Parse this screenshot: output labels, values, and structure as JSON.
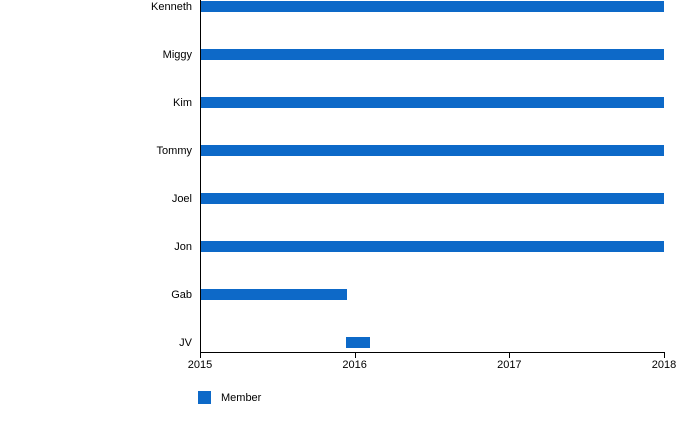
{
  "chart_data": {
    "type": "bar",
    "subtype": "horizontal-range-timeline",
    "title": "",
    "xlabel": "",
    "ylabel": "",
    "grid": false,
    "categories": [
      "Kenneth",
      "Miggy",
      "Kim",
      "Tommy",
      "Joel",
      "Jon",
      "Gab",
      "JV"
    ],
    "series": [
      {
        "name": "Member",
        "color": "#0d69c8",
        "ranges": [
          {
            "category": "Kenneth",
            "start": 2015,
            "end": 2018
          },
          {
            "category": "Miggy",
            "start": 2015,
            "end": 2018
          },
          {
            "category": "Kim",
            "start": 2015,
            "end": 2018
          },
          {
            "category": "Tommy",
            "start": 2015,
            "end": 2018
          },
          {
            "category": "Joel",
            "start": 2015,
            "end": 2018
          },
          {
            "category": "Jon",
            "start": 2015,
            "end": 2018
          },
          {
            "category": "Gab",
            "start": 2015,
            "end": 2015.95
          },
          {
            "category": "JV",
            "start": 2015.94,
            "end": 2016.1
          }
        ]
      }
    ],
    "xlim": [
      2015,
      2018
    ],
    "x_ticks": [
      "2015",
      "2016",
      "2017",
      "2018"
    ],
    "legend": {
      "label": "Member",
      "position": "bottom-left",
      "swatch_color": "#0d69c8"
    },
    "axis_color": "#000000",
    "text_color": "#000000",
    "background_color": "#ffffff"
  }
}
